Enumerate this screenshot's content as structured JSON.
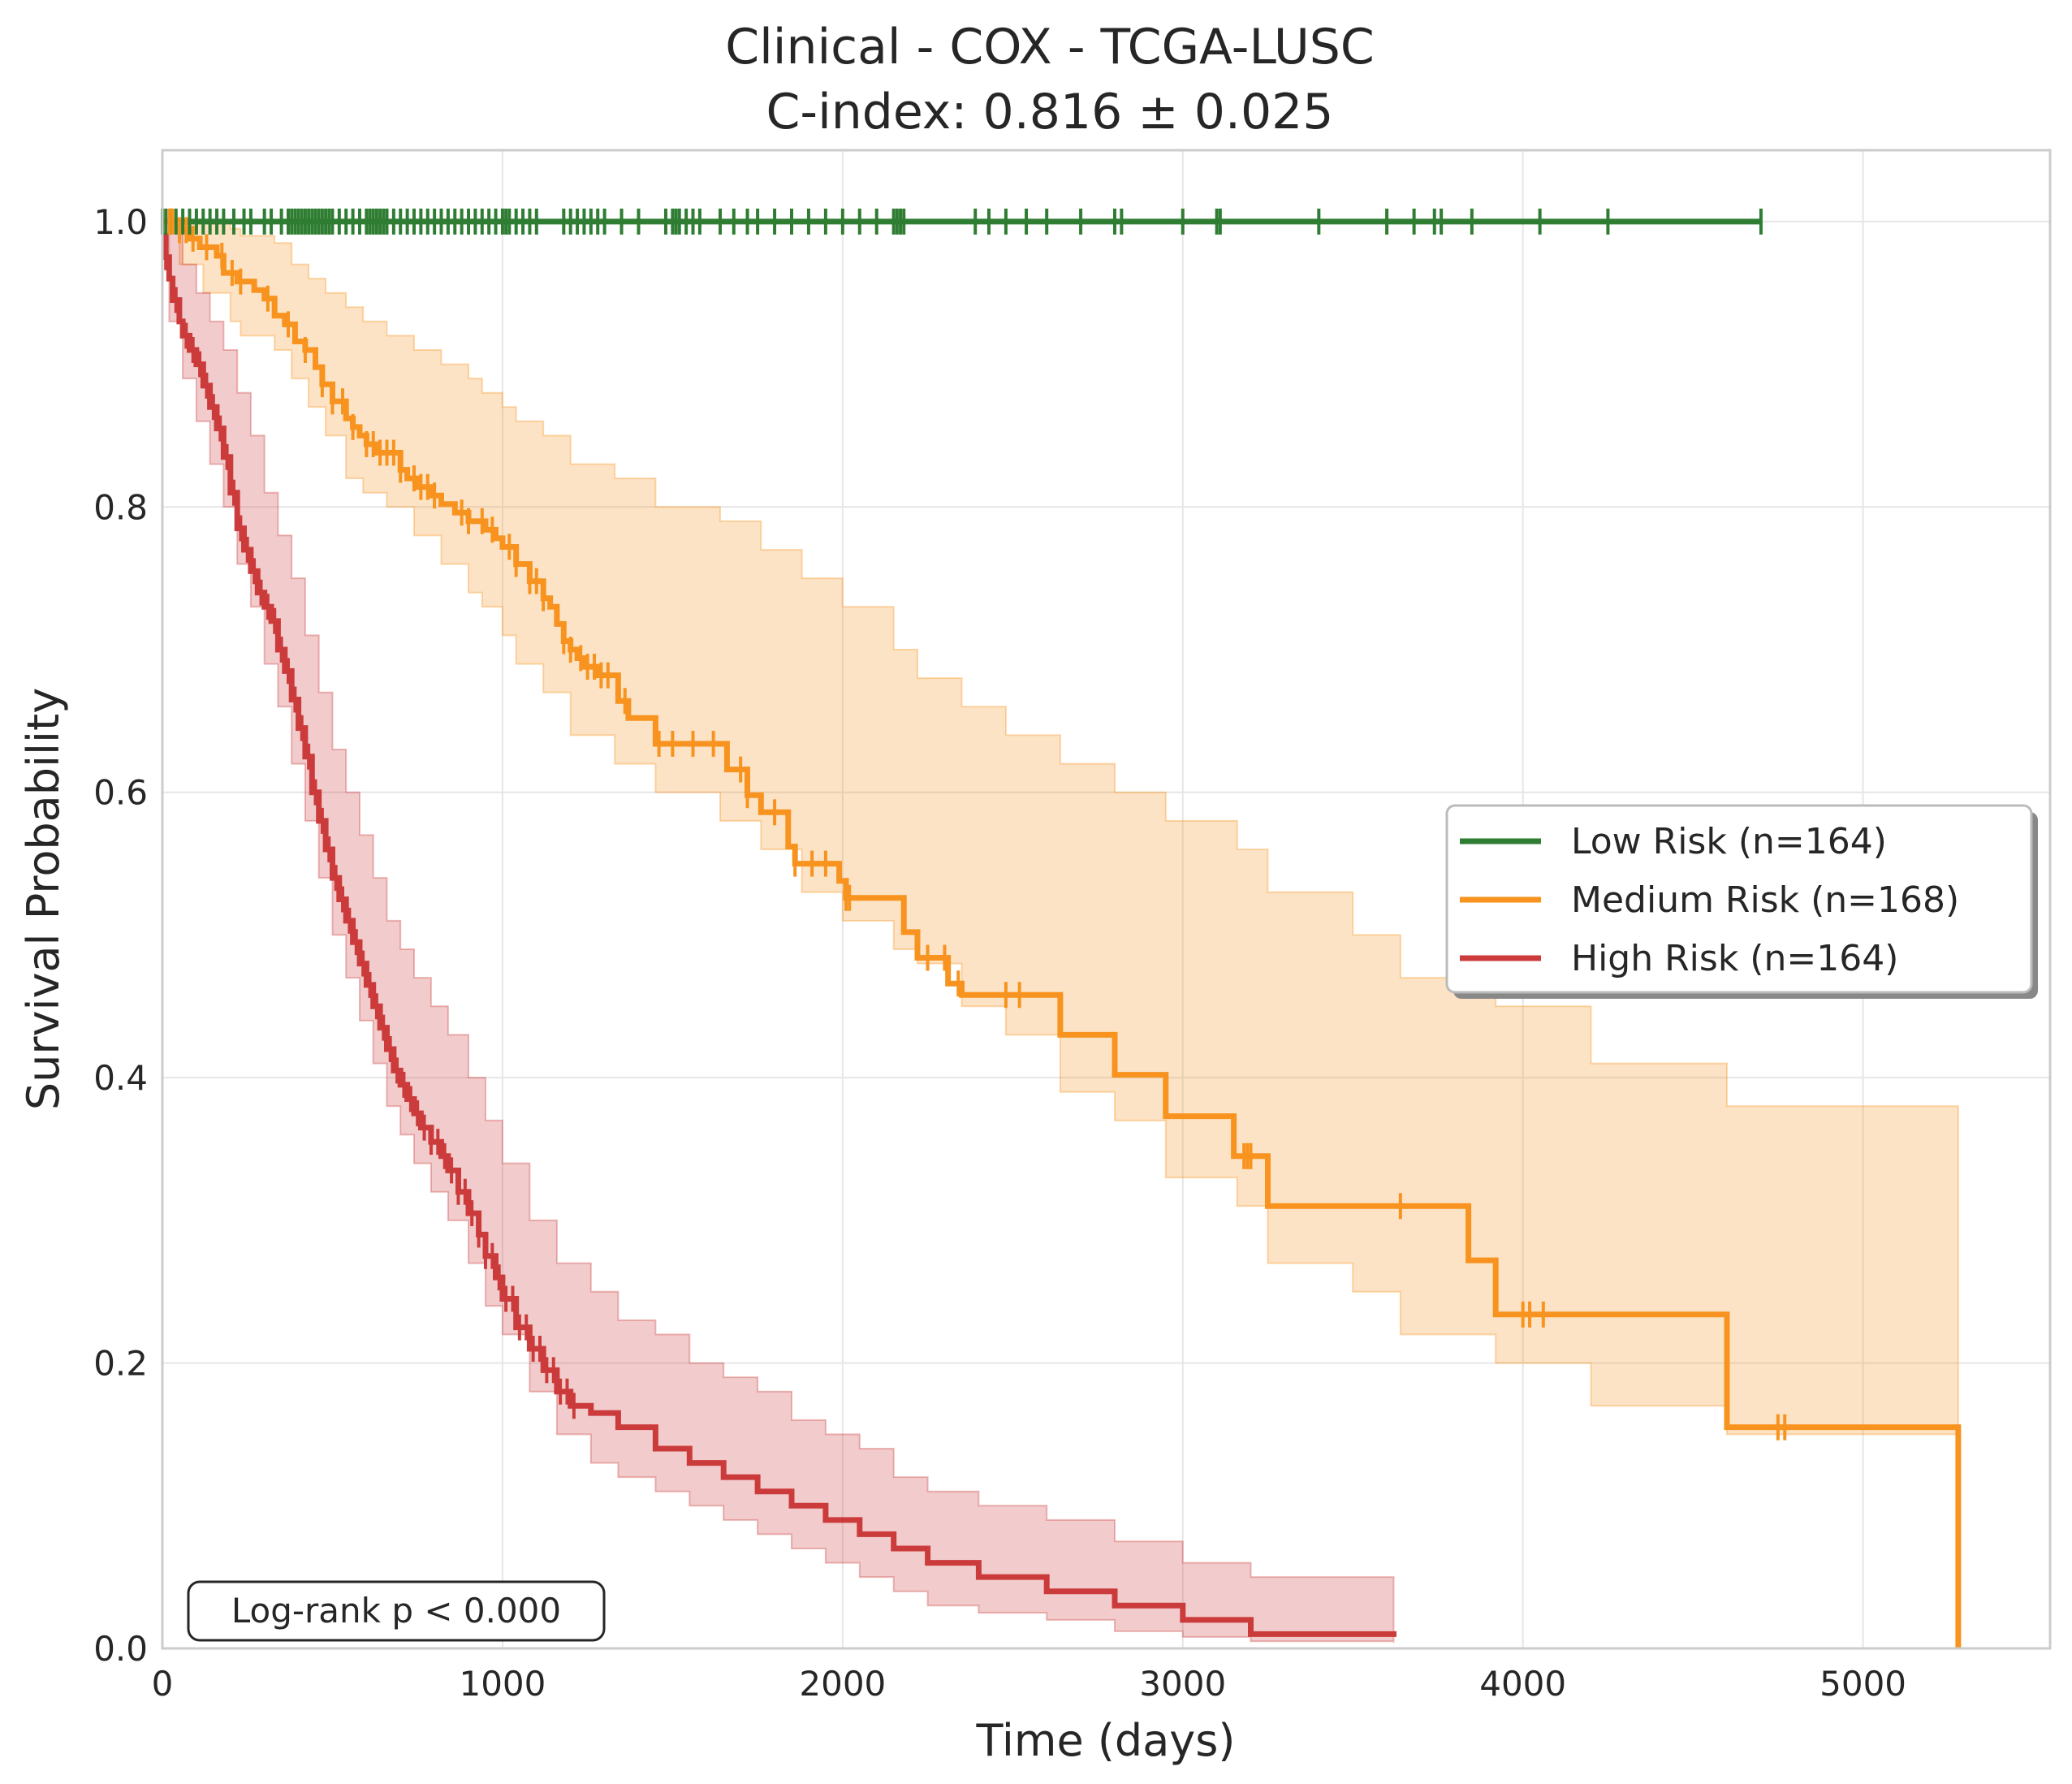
{
  "chart_data": {
    "type": "line",
    "title": "Clinical - COX - TCGA-LUSC",
    "subtitle": "C-index: 0.816 ± 0.025",
    "xlabel": "Time (days)",
    "ylabel": "Survival Probability",
    "xlim": [
      0,
      5550
    ],
    "ylim": [
      0,
      1.05
    ],
    "xticks": [
      "0",
      "1000",
      "2000",
      "3000",
      "4000",
      "5000"
    ],
    "yticks": [
      "0.0",
      "0.2",
      "0.4",
      "0.6",
      "0.8",
      "1.0"
    ],
    "grid": true,
    "legend_position": "center-right",
    "annotation": "Log-rank p < 0.000",
    "series": [
      {
        "name": "Low Risk (n=164)",
        "color": "#2e7d32",
        "steps": [
          [
            0,
            1.0
          ],
          [
            4700,
            1.0
          ]
        ],
        "ci": [],
        "censors": [
          0,
          10,
          25,
          40,
          60,
          80,
          100,
          120,
          140,
          160,
          180,
          210,
          240,
          260,
          300,
          320,
          350,
          370,
          380,
          390,
          400,
          410,
          420,
          430,
          440,
          450,
          460,
          470,
          480,
          490,
          500,
          520,
          540,
          560,
          580,
          600,
          610,
          620,
          630,
          640,
          650,
          660,
          680,
          700,
          720,
          740,
          760,
          780,
          800,
          820,
          840,
          860,
          880,
          900,
          920,
          940,
          960,
          980,
          1000,
          1010,
          1020,
          1040,
          1060,
          1080,
          1100,
          1180,
          1200,
          1220,
          1240,
          1260,
          1280,
          1300,
          1350,
          1400,
          1480,
          1500,
          1510,
          1520,
          1540,
          1560,
          1580,
          1640,
          1680,
          1720,
          1750,
          1800,
          1850,
          1900,
          1950,
          2000,
          2050,
          2100,
          2150,
          2160,
          2170,
          2180,
          2390,
          2430,
          2480,
          2540,
          2600,
          2700,
          2800,
          2820,
          3000,
          3100,
          3110,
          3400,
          3600,
          3680,
          3740,
          3760,
          3850,
          4050,
          4250,
          4700
        ]
      },
      {
        "name": "Medium Risk (n=168)",
        "color": "#f7931e",
        "steps": [
          [
            0,
            1.0
          ],
          [
            50,
            0.994
          ],
          [
            80,
            0.988
          ],
          [
            110,
            0.982
          ],
          [
            160,
            0.976
          ],
          [
            180,
            0.964
          ],
          [
            220,
            0.958
          ],
          [
            270,
            0.952
          ],
          [
            300,
            0.946
          ],
          [
            330,
            0.934
          ],
          [
            360,
            0.928
          ],
          [
            390,
            0.916
          ],
          [
            420,
            0.91
          ],
          [
            450,
            0.898
          ],
          [
            470,
            0.886
          ],
          [
            500,
            0.874
          ],
          [
            540,
            0.862
          ],
          [
            560,
            0.856
          ],
          [
            580,
            0.85
          ],
          [
            600,
            0.844
          ],
          [
            630,
            0.838
          ],
          [
            700,
            0.826
          ],
          [
            720,
            0.82
          ],
          [
            750,
            0.814
          ],
          [
            790,
            0.808
          ],
          [
            820,
            0.802
          ],
          [
            860,
            0.796
          ],
          [
            900,
            0.79
          ],
          [
            950,
            0.784
          ],
          [
            980,
            0.778
          ],
          [
            1000,
            0.772
          ],
          [
            1040,
            0.76
          ],
          [
            1080,
            0.748
          ],
          [
            1120,
            0.736
          ],
          [
            1140,
            0.73
          ],
          [
            1160,
            0.718
          ],
          [
            1180,
            0.706
          ],
          [
            1200,
            0.7
          ],
          [
            1220,
            0.694
          ],
          [
            1240,
            0.688
          ],
          [
            1280,
            0.682
          ],
          [
            1340,
            0.664
          ],
          [
            1370,
            0.652
          ],
          [
            1450,
            0.634
          ],
          [
            1660,
            0.616
          ],
          [
            1720,
            0.598
          ],
          [
            1760,
            0.586
          ],
          [
            1840,
            0.562
          ],
          [
            1860,
            0.55
          ],
          [
            1990,
            0.538
          ],
          [
            2010,
            0.526
          ],
          [
            2180,
            0.502
          ],
          [
            2220,
            0.484
          ],
          [
            2310,
            0.466
          ],
          [
            2350,
            0.458
          ],
          [
            2640,
            0.43
          ],
          [
            2800,
            0.402
          ],
          [
            2950,
            0.373
          ],
          [
            3150,
            0.345
          ],
          [
            3250,
            0.31
          ],
          [
            3840,
            0.272
          ],
          [
            3920,
            0.234
          ],
          [
            4600,
            0.155
          ],
          [
            5280,
            0.0
          ]
        ],
        "ci": [
          [
            0,
            1.0,
            1.0
          ],
          [
            50,
            0.97,
            1.0
          ],
          [
            120,
            0.95,
            1.0
          ],
          [
            200,
            0.93,
            0.995
          ],
          [
            230,
            0.92,
            0.99
          ],
          [
            330,
            0.91,
            0.985
          ],
          [
            380,
            0.89,
            0.97
          ],
          [
            430,
            0.87,
            0.96
          ],
          [
            480,
            0.85,
            0.95
          ],
          [
            540,
            0.82,
            0.94
          ],
          [
            590,
            0.81,
            0.93
          ],
          [
            660,
            0.8,
            0.92
          ],
          [
            740,
            0.78,
            0.91
          ],
          [
            820,
            0.76,
            0.9
          ],
          [
            900,
            0.74,
            0.89
          ],
          [
            940,
            0.73,
            0.88
          ],
          [
            1000,
            0.71,
            0.87
          ],
          [
            1040,
            0.69,
            0.86
          ],
          [
            1120,
            0.67,
            0.85
          ],
          [
            1200,
            0.64,
            0.83
          ],
          [
            1330,
            0.62,
            0.82
          ],
          [
            1450,
            0.6,
            0.8
          ],
          [
            1640,
            0.58,
            0.79
          ],
          [
            1760,
            0.56,
            0.77
          ],
          [
            1880,
            0.53,
            0.75
          ],
          [
            2000,
            0.51,
            0.73
          ],
          [
            2150,
            0.49,
            0.7
          ],
          [
            2220,
            0.48,
            0.68
          ],
          [
            2350,
            0.45,
            0.66
          ],
          [
            2480,
            0.43,
            0.64
          ],
          [
            2640,
            0.39,
            0.62
          ],
          [
            2800,
            0.37,
            0.6
          ],
          [
            2950,
            0.33,
            0.58
          ],
          [
            3160,
            0.31,
            0.56
          ],
          [
            3250,
            0.27,
            0.53
          ],
          [
            3500,
            0.25,
            0.5
          ],
          [
            3640,
            0.22,
            0.47
          ],
          [
            3920,
            0.2,
            0.45
          ],
          [
            4200,
            0.17,
            0.41
          ],
          [
            4600,
            0.15,
            0.38
          ],
          [
            5280,
            0.11,
            0.34
          ]
        ],
        "censors": [
          20,
          30,
          50,
          70,
          90,
          130,
          175,
          205,
          230,
          310,
          370,
          420,
          470,
          500,
          530,
          560,
          600,
          620,
          640,
          660,
          680,
          700,
          740,
          760,
          780,
          800,
          880,
          900,
          940,
          970,
          1020,
          1040,
          1080,
          1100,
          1120,
          1180,
          1200,
          1230,
          1250,
          1270,
          1290,
          1310,
          1360,
          1460,
          1500,
          1560,
          1620,
          1700,
          1720,
          1800,
          1860,
          1910,
          1950,
          2010,
          2020,
          2250,
          2300,
          2340,
          2480,
          2520,
          3180,
          3190,
          3200,
          3640,
          4000,
          4020,
          4060,
          4750,
          4770
        ]
      },
      {
        "name": "High Risk (n=164)",
        "color": "#cc3b3b",
        "steps": [
          [
            0,
            0.99
          ],
          [
            10,
            0.975
          ],
          [
            20,
            0.96
          ],
          [
            30,
            0.945
          ],
          [
            50,
            0.93
          ],
          [
            60,
            0.92
          ],
          [
            80,
            0.91
          ],
          [
            100,
            0.9
          ],
          [
            120,
            0.885
          ],
          [
            140,
            0.87
          ],
          [
            160,
            0.855
          ],
          [
            180,
            0.835
          ],
          [
            200,
            0.81
          ],
          [
            220,
            0.785
          ],
          [
            240,
            0.77
          ],
          [
            260,
            0.755
          ],
          [
            280,
            0.74
          ],
          [
            300,
            0.73
          ],
          [
            320,
            0.72
          ],
          [
            340,
            0.7
          ],
          [
            360,
            0.685
          ],
          [
            380,
            0.665
          ],
          [
            400,
            0.645
          ],
          [
            420,
            0.625
          ],
          [
            440,
            0.6
          ],
          [
            460,
            0.58
          ],
          [
            480,
            0.56
          ],
          [
            500,
            0.54
          ],
          [
            520,
            0.525
          ],
          [
            540,
            0.51
          ],
          [
            560,
            0.495
          ],
          [
            580,
            0.48
          ],
          [
            600,
            0.465
          ],
          [
            620,
            0.45
          ],
          [
            640,
            0.435
          ],
          [
            660,
            0.42
          ],
          [
            680,
            0.405
          ],
          [
            700,
            0.395
          ],
          [
            720,
            0.385
          ],
          [
            740,
            0.375
          ],
          [
            760,
            0.365
          ],
          [
            790,
            0.355
          ],
          [
            820,
            0.345
          ],
          [
            840,
            0.335
          ],
          [
            870,
            0.32
          ],
          [
            900,
            0.305
          ],
          [
            930,
            0.29
          ],
          [
            950,
            0.275
          ],
          [
            980,
            0.26
          ],
          [
            1000,
            0.245
          ],
          [
            1040,
            0.225
          ],
          [
            1080,
            0.21
          ],
          [
            1120,
            0.195
          ],
          [
            1160,
            0.18
          ],
          [
            1200,
            0.17
          ],
          [
            1260,
            0.165
          ],
          [
            1340,
            0.155
          ],
          [
            1450,
            0.14
          ],
          [
            1550,
            0.13
          ],
          [
            1650,
            0.12
          ],
          [
            1750,
            0.11
          ],
          [
            1850,
            0.1
          ],
          [
            1950,
            0.09
          ],
          [
            2050,
            0.08
          ],
          [
            2150,
            0.07
          ],
          [
            2250,
            0.06
          ],
          [
            2400,
            0.05
          ],
          [
            2600,
            0.04
          ],
          [
            2800,
            0.03
          ],
          [
            3000,
            0.02
          ],
          [
            3200,
            0.01
          ],
          [
            3620,
            0.008
          ]
        ],
        "ci": [
          [
            0,
            1.0,
            1.0
          ],
          [
            20,
            0.93,
            1.0
          ],
          [
            60,
            0.89,
            0.97
          ],
          [
            100,
            0.86,
            0.95
          ],
          [
            140,
            0.83,
            0.93
          ],
          [
            180,
            0.8,
            0.91
          ],
          [
            220,
            0.76,
            0.88
          ],
          [
            260,
            0.73,
            0.85
          ],
          [
            300,
            0.69,
            0.81
          ],
          [
            340,
            0.66,
            0.78
          ],
          [
            380,
            0.62,
            0.75
          ],
          [
            420,
            0.58,
            0.71
          ],
          [
            460,
            0.54,
            0.67
          ],
          [
            500,
            0.5,
            0.63
          ],
          [
            540,
            0.47,
            0.6
          ],
          [
            580,
            0.44,
            0.57
          ],
          [
            620,
            0.41,
            0.54
          ],
          [
            660,
            0.38,
            0.51
          ],
          [
            700,
            0.36,
            0.49
          ],
          [
            740,
            0.34,
            0.47
          ],
          [
            790,
            0.32,
            0.45
          ],
          [
            840,
            0.3,
            0.43
          ],
          [
            900,
            0.27,
            0.4
          ],
          [
            950,
            0.24,
            0.37
          ],
          [
            1000,
            0.22,
            0.34
          ],
          [
            1080,
            0.18,
            0.3
          ],
          [
            1160,
            0.15,
            0.27
          ],
          [
            1260,
            0.13,
            0.25
          ],
          [
            1340,
            0.12,
            0.23
          ],
          [
            1450,
            0.11,
            0.22
          ],
          [
            1550,
            0.1,
            0.2
          ],
          [
            1650,
            0.09,
            0.19
          ],
          [
            1750,
            0.08,
            0.18
          ],
          [
            1850,
            0.07,
            0.16
          ],
          [
            1950,
            0.06,
            0.15
          ],
          [
            2050,
            0.05,
            0.14
          ],
          [
            2150,
            0.04,
            0.12
          ],
          [
            2250,
            0.03,
            0.11
          ],
          [
            2400,
            0.025,
            0.1
          ],
          [
            2600,
            0.02,
            0.09
          ],
          [
            2800,
            0.012,
            0.075
          ],
          [
            3000,
            0.008,
            0.06
          ],
          [
            3200,
            0.005,
            0.05
          ],
          [
            3620,
            0.004,
            0.045
          ]
        ],
        "censors": [
          10,
          40,
          70,
          90,
          110,
          130,
          150,
          170,
          190,
          210,
          230,
          250,
          270,
          290,
          310,
          330,
          350,
          370,
          390,
          410,
          430,
          450,
          470,
          490,
          510,
          530,
          550,
          570,
          590,
          610,
          630,
          650,
          670,
          690,
          710,
          730,
          750,
          770,
          790,
          810,
          830,
          850,
          870,
          890,
          910,
          930,
          950,
          970,
          990,
          1010,
          1030,
          1050,
          1070,
          1090,
          1110,
          1130,
          1150,
          1170,
          1190,
          1210
        ]
      }
    ]
  }
}
